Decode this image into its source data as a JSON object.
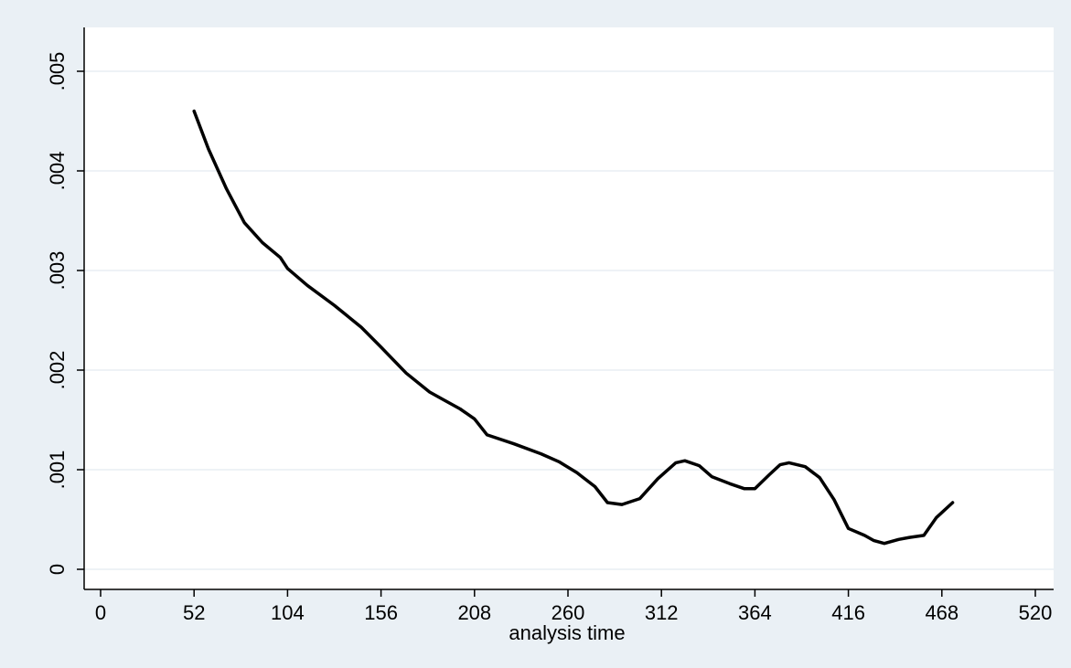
{
  "chart_data": {
    "type": "line",
    "title": "",
    "xlabel": "analysis time",
    "ylabel": "",
    "xlim": [
      0,
      520
    ],
    "ylim": [
      0,
      0.005
    ],
    "x_ticks": [
      0,
      52,
      104,
      156,
      208,
      260,
      312,
      364,
      416,
      468,
      520
    ],
    "x_tick_labels": [
      "0",
      "52",
      "104",
      "156",
      "208",
      "260",
      "312",
      "364",
      "416",
      "468",
      "520"
    ],
    "y_ticks": [
      0,
      0.001,
      0.002,
      0.003,
      0.004,
      0.005
    ],
    "y_tick_labels": [
      "0",
      ".001",
      ".002",
      ".003",
      ".004",
      ".005"
    ],
    "grid": true,
    "legend": "none",
    "colors": {
      "plot_background": "#ffffff",
      "outer_background": "#eaf0f5",
      "grid": "#e8eef3",
      "line": "#000000"
    },
    "series": [
      {
        "x": [
          52,
          60,
          70,
          80,
          90,
          100,
          104,
          115,
          130,
          145,
          156,
          170,
          183,
          190,
          200,
          208,
          215,
          230,
          245,
          255,
          265,
          275,
          282,
          290,
          300,
          310,
          320,
          325,
          333,
          340,
          350,
          358,
          364,
          372,
          378,
          383,
          392,
          400,
          408,
          416,
          425,
          430,
          436,
          444,
          450,
          458,
          465,
          474
        ],
        "y": [
          0.0046,
          0.00422,
          0.00382,
          0.00348,
          0.00328,
          0.00313,
          0.00302,
          0.00285,
          0.00265,
          0.00243,
          0.00223,
          0.00197,
          0.00178,
          0.00171,
          0.00161,
          0.00151,
          0.00135,
          0.00126,
          0.00116,
          0.00108,
          0.00097,
          0.00083,
          0.00067,
          0.00065,
          0.00071,
          0.00091,
          0.00107,
          0.00109,
          0.00104,
          0.00093,
          0.00086,
          0.00081,
          0.00081,
          0.00095,
          0.00105,
          0.00107,
          0.00103,
          0.00092,
          0.0007,
          0.00041,
          0.00034,
          0.00029,
          0.00026,
          0.0003,
          0.00032,
          0.00034,
          0.00052,
          0.00067
        ]
      }
    ]
  }
}
